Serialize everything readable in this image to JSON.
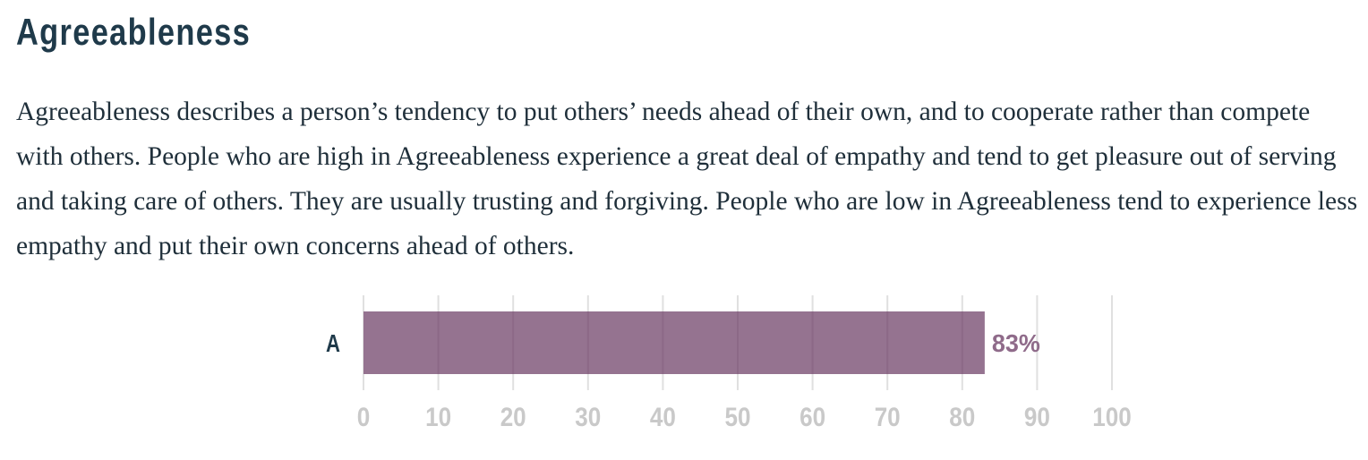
{
  "section": {
    "title": "Agreeableness",
    "description": "Agreeableness describes a person’s tendency to put others’ needs ahead of their own, and to cooperate rather than compete with others. People who are high in Agreeableness experience a great deal of empathy and tend to get pleasure out of serving and taking care of others. They are usually trusting and forgiving. People who are low in Agreeableness tend to experience less empathy and put their own concerns ahead of others."
  },
  "chart_data": {
    "type": "bar",
    "orientation": "horizontal",
    "categories": [
      "A"
    ],
    "values": [
      83
    ],
    "value_labels": [
      "83%"
    ],
    "xlim": [
      0,
      100
    ],
    "x_ticks": [
      0,
      10,
      20,
      30,
      40,
      50,
      60,
      70,
      80,
      90,
      100
    ],
    "grid": true,
    "bar_color": "#8f6b8a"
  }
}
